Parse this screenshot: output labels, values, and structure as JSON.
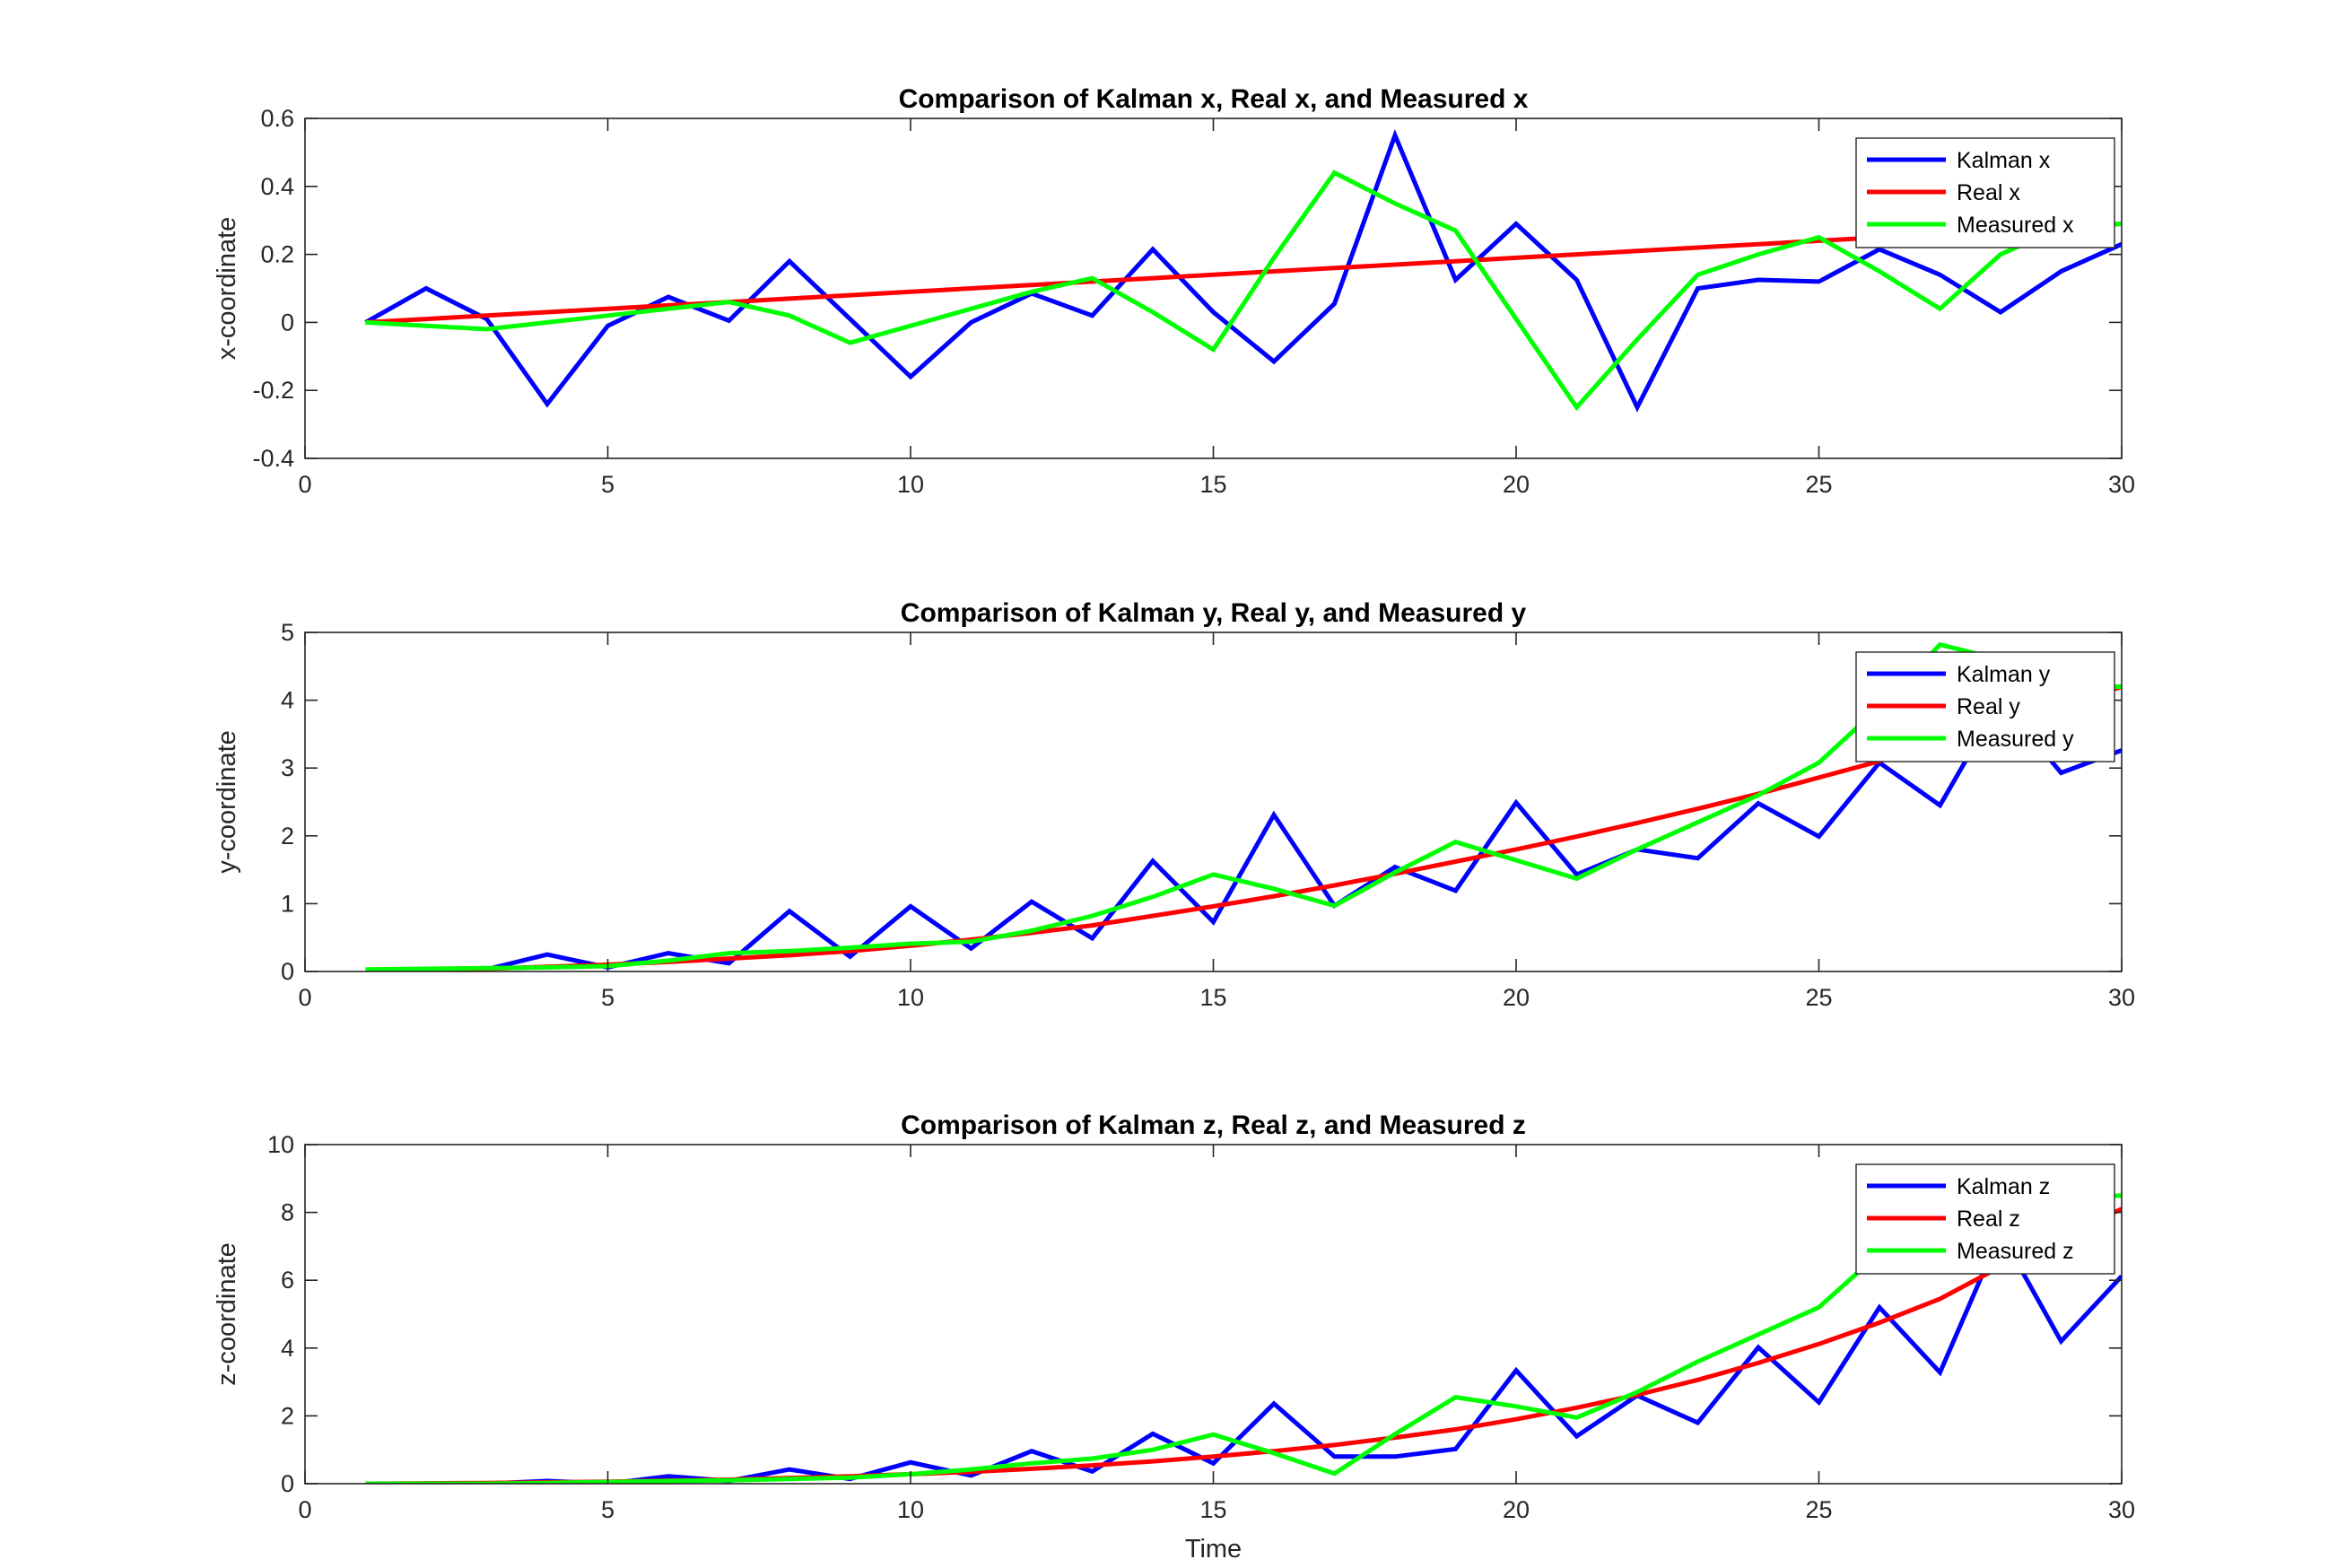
{
  "chart_data": [
    {
      "type": "line",
      "title": "Comparison of Kalman x, Real x, and Measured x",
      "xlabel": "",
      "ylabel": "x-coordinate",
      "xlim": [
        0,
        30
      ],
      "ylim": [
        -0.4,
        0.6
      ],
      "xticks": [
        0,
        5,
        10,
        15,
        20,
        25,
        30
      ],
      "yticks": [
        -0.4,
        -0.2,
        0,
        0.2,
        0.4,
        0.6
      ],
      "ytick_labels": [
        "-0.4",
        "-0.2",
        "0",
        "0.2",
        "0.4",
        "0.6"
      ],
      "grid": false,
      "legend_position": "top-right",
      "x": [
        1,
        2,
        3,
        4,
        5,
        6,
        7,
        8,
        9,
        10,
        11,
        12,
        13,
        14,
        15,
        16,
        17,
        18,
        19,
        20,
        21,
        22,
        23,
        24,
        25,
        26,
        27,
        28,
        29,
        30
      ],
      "series": [
        {
          "name": "Kalman x",
          "color": "#0000ff",
          "values": [
            0,
            0.1,
            0.01,
            -0.24,
            -0.01,
            0.075,
            0.005,
            0.18,
            0.01,
            -0.16,
            0,
            0.085,
            0.02,
            0.215,
            0.03,
            -0.115,
            0.055,
            0.55,
            0.125,
            0.29,
            0.125,
            -0.25,
            0.1,
            0.125,
            0.12,
            0.215,
            0.14,
            0.03,
            0.15,
            0.23
          ]
        },
        {
          "name": "Real x",
          "color": "#ff0000",
          "values": [
            0,
            0.01,
            0.02,
            0.03,
            0.04,
            0.05,
            0.06,
            0.07,
            0.08,
            0.09,
            0.1,
            0.11,
            0.12,
            0.13,
            0.14,
            0.15,
            0.16,
            0.17,
            0.18,
            0.19,
            0.2,
            0.21,
            0.22,
            0.23,
            0.24,
            0.25,
            0.26,
            0.27,
            0.28,
            0.29
          ]
        },
        {
          "name": "Measured x",
          "color": "#00ff00",
          "values": [
            0,
            -0.01,
            -0.02,
            0,
            0.02,
            0.04,
            0.06,
            0.02,
            -0.06,
            -0.01,
            0.04,
            0.09,
            0.13,
            0.03,
            -0.08,
            0.19,
            0.44,
            0.35,
            0.27,
            0.01,
            -0.25,
            -0.05,
            0.14,
            0.2,
            0.25,
            0.15,
            0.04,
            0.2,
            0.28,
            0.29
          ]
        }
      ]
    },
    {
      "type": "line",
      "title": "Comparison of Kalman y, Real y, and Measured y",
      "xlabel": "",
      "ylabel": "y-coordinate",
      "xlim": [
        0,
        30
      ],
      "ylim": [
        0,
        5
      ],
      "xticks": [
        0,
        5,
        10,
        15,
        20,
        25,
        30
      ],
      "yticks": [
        0,
        1,
        2,
        3,
        4,
        5
      ],
      "ytick_labels": [
        "0",
        "1",
        "2",
        "3",
        "4",
        "5"
      ],
      "grid": false,
      "legend_position": "top-right",
      "x": [
        1,
        2,
        3,
        4,
        5,
        6,
        7,
        8,
        9,
        10,
        11,
        12,
        13,
        14,
        15,
        16,
        17,
        18,
        19,
        20,
        21,
        22,
        23,
        24,
        25,
        26,
        27,
        28,
        29,
        30
      ],
      "series": [
        {
          "name": "Kalman y",
          "color": "#0000ff",
          "values": [
            0.02,
            0.02,
            0.03,
            0.25,
            0.06,
            0.27,
            0.12,
            0.89,
            0.22,
            0.96,
            0.34,
            1.03,
            0.49,
            1.63,
            0.73,
            2.31,
            0.97,
            1.54,
            1.19,
            2.49,
            1.43,
            1.8,
            1.67,
            2.48,
            1.99,
            3.08,
            2.45,
            4.0,
            2.93,
            3.26
          ]
        },
        {
          "name": "Real y",
          "color": "#ff0000",
          "values": [
            0,
            0.02,
            0.04,
            0.07,
            0.1,
            0.14,
            0.19,
            0.24,
            0.3,
            0.38,
            0.47,
            0.57,
            0.68,
            0.82,
            0.96,
            1.11,
            1.27,
            1.44,
            1.62,
            1.8,
            1.99,
            2.19,
            2.4,
            2.62,
            2.86,
            3.1,
            3.38,
            3.65,
            3.9,
            4.2
          ]
        },
        {
          "name": "Measured y",
          "color": "#00ff00",
          "values": [
            0.03,
            0.04,
            0.05,
            0.06,
            0.08,
            0.16,
            0.27,
            0.3,
            0.35,
            0.41,
            0.44,
            0.6,
            0.82,
            1.1,
            1.43,
            1.22,
            0.97,
            1.46,
            1.91,
            1.64,
            1.37,
            1.8,
            2.2,
            2.6,
            3.08,
            3.9,
            4.82,
            4.6,
            4.2,
            4.2
          ]
        }
      ]
    },
    {
      "type": "line",
      "title": "Comparison of Kalman z, Real z, and Measured z",
      "xlabel": "Time",
      "ylabel": "z-coordinate",
      "xlim": [
        0,
        30
      ],
      "ylim": [
        0,
        10
      ],
      "xticks": [
        0,
        5,
        10,
        15,
        20,
        25,
        30
      ],
      "yticks": [
        0,
        2,
        4,
        6,
        8,
        10
      ],
      "ytick_labels": [
        "0",
        "2",
        "4",
        "6",
        "8",
        "10"
      ],
      "grid": false,
      "legend_position": "top-right",
      "x": [
        1,
        2,
        3,
        4,
        5,
        6,
        7,
        8,
        9,
        10,
        11,
        12,
        13,
        14,
        15,
        16,
        17,
        18,
        19,
        20,
        21,
        22,
        23,
        24,
        25,
        26,
        27,
        28,
        29,
        30
      ],
      "series": [
        {
          "name": "Kalman z",
          "color": "#0000ff",
          "values": [
            0,
            0,
            0,
            0.08,
            0,
            0.22,
            0.08,
            0.42,
            0.14,
            0.63,
            0.24,
            0.96,
            0.36,
            1.47,
            0.6,
            2.36,
            0.8,
            0.8,
            1.02,
            3.34,
            1.4,
            2.6,
            1.8,
            4.02,
            2.4,
            5.2,
            3.28,
            7.4,
            4.2,
            6.12
          ]
        },
        {
          "name": "Real z",
          "color": "#ff0000",
          "values": [
            0,
            0.01,
            0.02,
            0.04,
            0.06,
            0.09,
            0.12,
            0.17,
            0.22,
            0.28,
            0.35,
            0.44,
            0.54,
            0.66,
            0.8,
            0.96,
            1.14,
            1.36,
            1.6,
            1.9,
            2.24,
            2.62,
            3.06,
            3.56,
            4.12,
            4.75,
            5.45,
            6.4,
            7.3,
            8.1
          ]
        },
        {
          "name": "Measured z",
          "color": "#00ff00",
          "values": [
            0,
            0,
            0,
            0.02,
            0.05,
            0.08,
            0.1,
            0.14,
            0.18,
            0.28,
            0.42,
            0.6,
            0.74,
            1.0,
            1.45,
            0.9,
            0.3,
            1.46,
            2.55,
            2.28,
            1.95,
            2.7,
            3.6,
            4.4,
            5.2,
            6.8,
            7.8,
            8.2,
            8.4,
            8.5
          ]
        }
      ]
    }
  ]
}
